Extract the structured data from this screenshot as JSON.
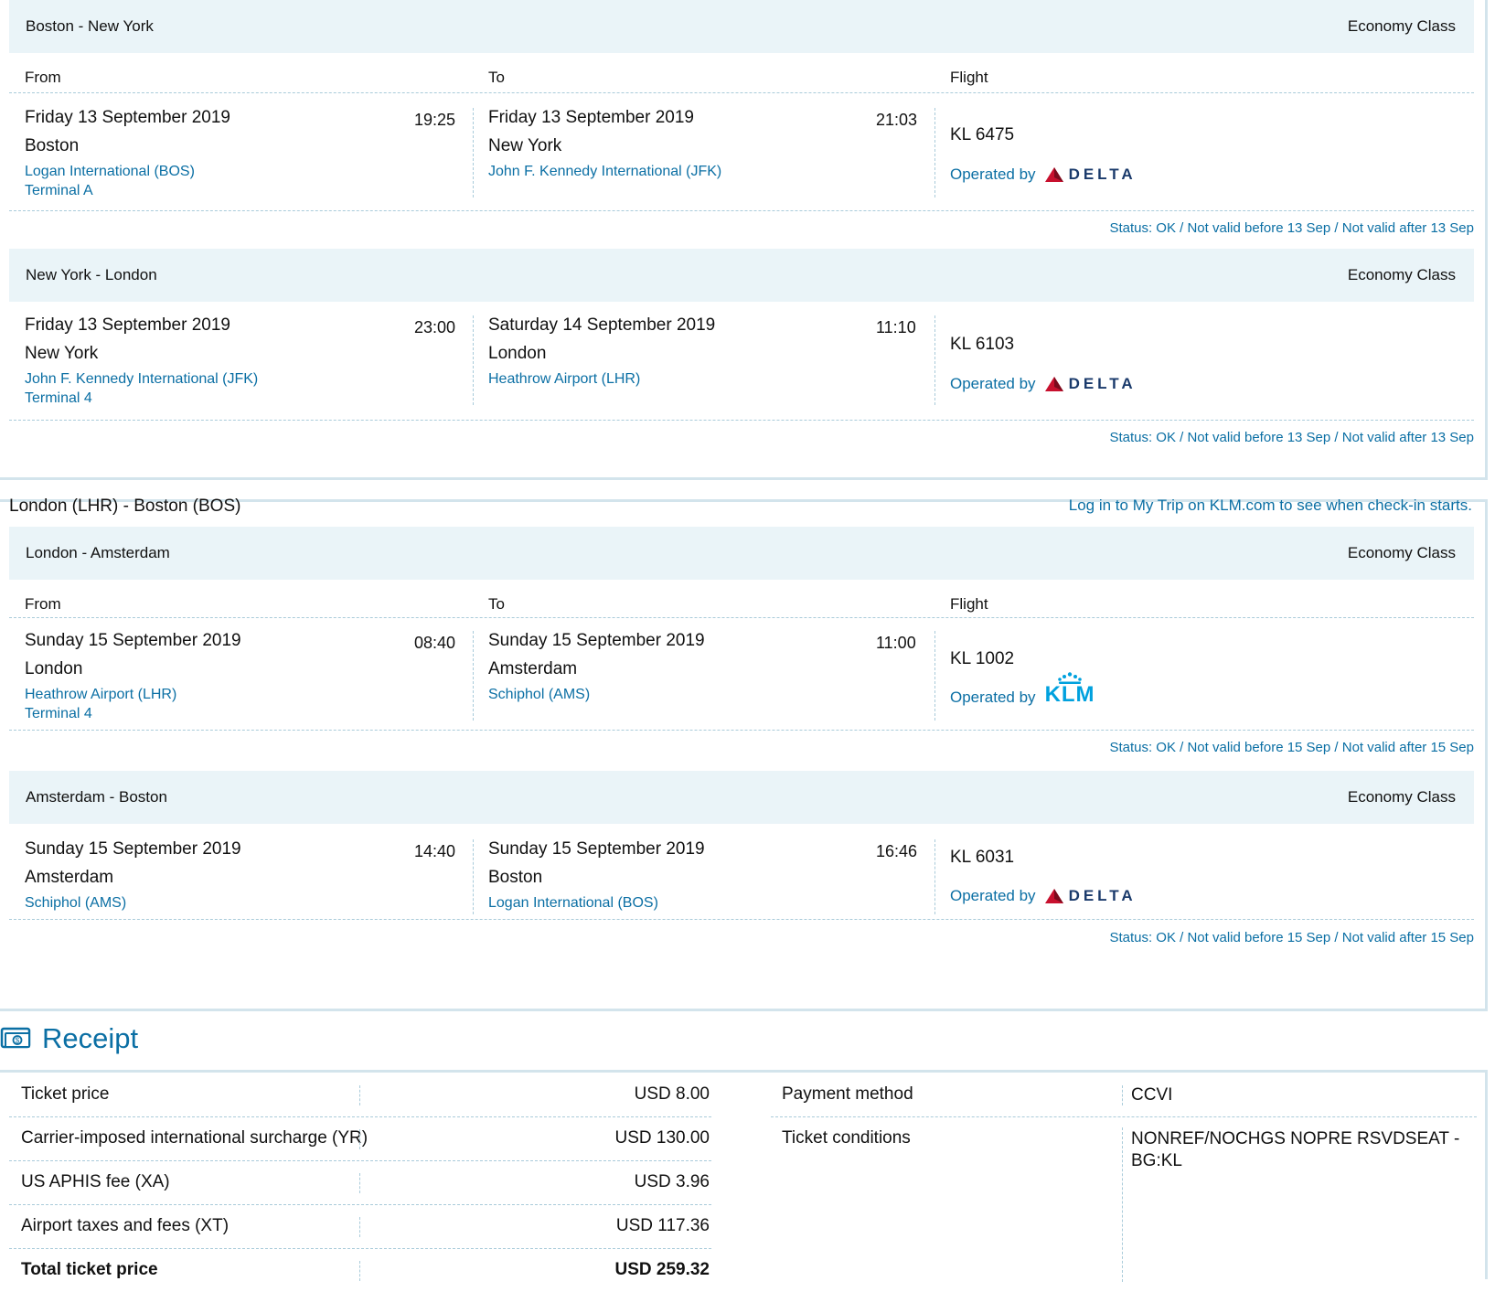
{
  "colors": {
    "accent": "#0b6fa4",
    "band": "#eaf4f8",
    "border": "#d3e4ec",
    "delta_red": "#c8102e",
    "delta_navy": "#1a3a6b",
    "klm_blue": "#00a1de"
  },
  "labels": {
    "from": "From",
    "to": "To",
    "flight": "Flight",
    "operated_by": "Operated by"
  },
  "trips": [
    {
      "title": "",
      "legs": [
        {
          "route": "Boston - New York",
          "class": "Economy Class",
          "from": {
            "date": "Friday 13 September 2019",
            "time": "19:25",
            "city": "Boston",
            "airport": "Logan International (BOS)",
            "terminal": "Terminal A"
          },
          "to": {
            "date": "Friday 13 September 2019",
            "time": "21:03",
            "city": "New York",
            "airport": "John F. Kennedy International (JFK)",
            "terminal": ""
          },
          "flight": "KL 6475",
          "carrier": "DELTA",
          "carrier_icon": "delta-logo-icon",
          "status": "Status: OK / Not valid before 13 Sep / Not valid after 13 Sep"
        },
        {
          "route": "New York - London",
          "class": "Economy Class",
          "from": {
            "date": "Friday 13 September 2019",
            "time": "23:00",
            "city": "New York",
            "airport": "John F. Kennedy International (JFK)",
            "terminal": "Terminal 4"
          },
          "to": {
            "date": "Saturday 14 September 2019",
            "time": "11:10",
            "city": "London",
            "airport": "Heathrow Airport (LHR)",
            "terminal": ""
          },
          "flight": "KL 6103",
          "carrier": "DELTA",
          "carrier_icon": "delta-logo-icon",
          "status": "Status: OK / Not valid before 13 Sep / Not valid after 13 Sep"
        }
      ]
    },
    {
      "title": "London (LHR) - Boston (BOS)",
      "note": "Log in to My Trip on KLM.com to see when check-in starts.",
      "legs": [
        {
          "route": "London - Amsterdam",
          "class": "Economy Class",
          "from": {
            "date": "Sunday 15 September 2019",
            "time": "08:40",
            "city": "London",
            "airport": "Heathrow Airport (LHR)",
            "terminal": "Terminal 4"
          },
          "to": {
            "date": "Sunday 15 September 2019",
            "time": "11:00",
            "city": "Amsterdam",
            "airport": "Schiphol (AMS)",
            "terminal": ""
          },
          "flight": "KL 1002",
          "carrier": "KLM",
          "carrier_icon": "klm-logo-icon",
          "status": "Status: OK / Not valid before 15 Sep / Not valid after 15 Sep"
        },
        {
          "route": "Amsterdam - Boston",
          "class": "Economy Class",
          "from": {
            "date": "Sunday 15 September 2019",
            "time": "14:40",
            "city": "Amsterdam",
            "airport": "Schiphol (AMS)",
            "terminal": ""
          },
          "to": {
            "date": "Sunday 15 September 2019",
            "time": "16:46",
            "city": "Boston",
            "airport": "Logan International (BOS)",
            "terminal": ""
          },
          "flight": "KL 6031",
          "carrier": "DELTA",
          "carrier_icon": "delta-logo-icon",
          "status": "Status: OK / Not valid before 15 Sep / Not valid after 15 Sep"
        }
      ]
    }
  ],
  "receipt": {
    "title": "Receipt",
    "icon": "money-icon",
    "items": [
      {
        "label": "Ticket price",
        "amount": "USD 8.00"
      },
      {
        "label": "Carrier-imposed international surcharge (YR)",
        "amount": "USD 130.00"
      },
      {
        "label": "US APHIS fee (XA)",
        "amount": "USD 3.96"
      },
      {
        "label": "Airport taxes and fees (XT)",
        "amount": "USD 117.36"
      }
    ],
    "total": {
      "label": "Total ticket price",
      "amount": "USD 259.32"
    },
    "payment_method": {
      "label": "Payment method",
      "value": "CCVI"
    },
    "ticket_conditions": {
      "label": "Ticket conditions",
      "value": "NONREF/NOCHGS NOPRE RSVDSEAT - BG:KL"
    }
  }
}
